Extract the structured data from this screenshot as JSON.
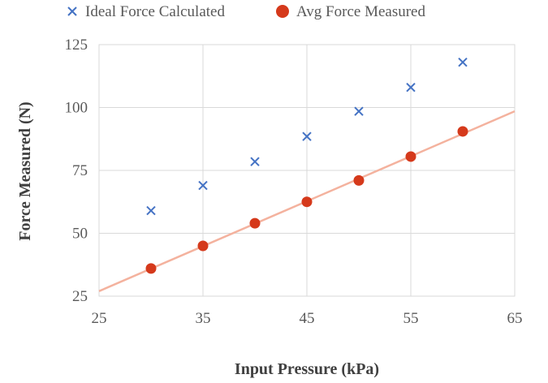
{
  "chart_data": {
    "type": "scatter",
    "title": "",
    "xlabel": "Input Pressure (kPa)",
    "ylabel": "Force Measured (N)",
    "xlim": [
      25,
      65
    ],
    "ylim": [
      25,
      125
    ],
    "xticks": [
      "25",
      "35",
      "45",
      "55",
      "65"
    ],
    "yticks": [
      "25",
      "50",
      "75",
      "100",
      "125"
    ],
    "x_tick_values": [
      25,
      35,
      45,
      55,
      65
    ],
    "y_tick_values": [
      25,
      50,
      75,
      100,
      125
    ],
    "grid": true,
    "legend_position": "top",
    "series": [
      {
        "name": "Ideal Force Calculated",
        "marker": "x",
        "color": "#4472C4",
        "x": [
          30,
          35,
          40,
          45,
          50,
          55,
          60
        ],
        "y": [
          59,
          69,
          78.5,
          88.5,
          98.5,
          108,
          118
        ]
      },
      {
        "name": "Avg Force Measured",
        "marker": "circle",
        "color": "#D5391B",
        "x": [
          30,
          35,
          40,
          45,
          50,
          55,
          60
        ],
        "y": [
          36,
          45,
          54,
          62.5,
          71,
          80.5,
          90.5
        ]
      }
    ],
    "trendline": {
      "series": "Avg Force Measured",
      "color": "#F4B29E",
      "x": [
        25,
        65
      ],
      "y": [
        27,
        98.5
      ]
    }
  }
}
